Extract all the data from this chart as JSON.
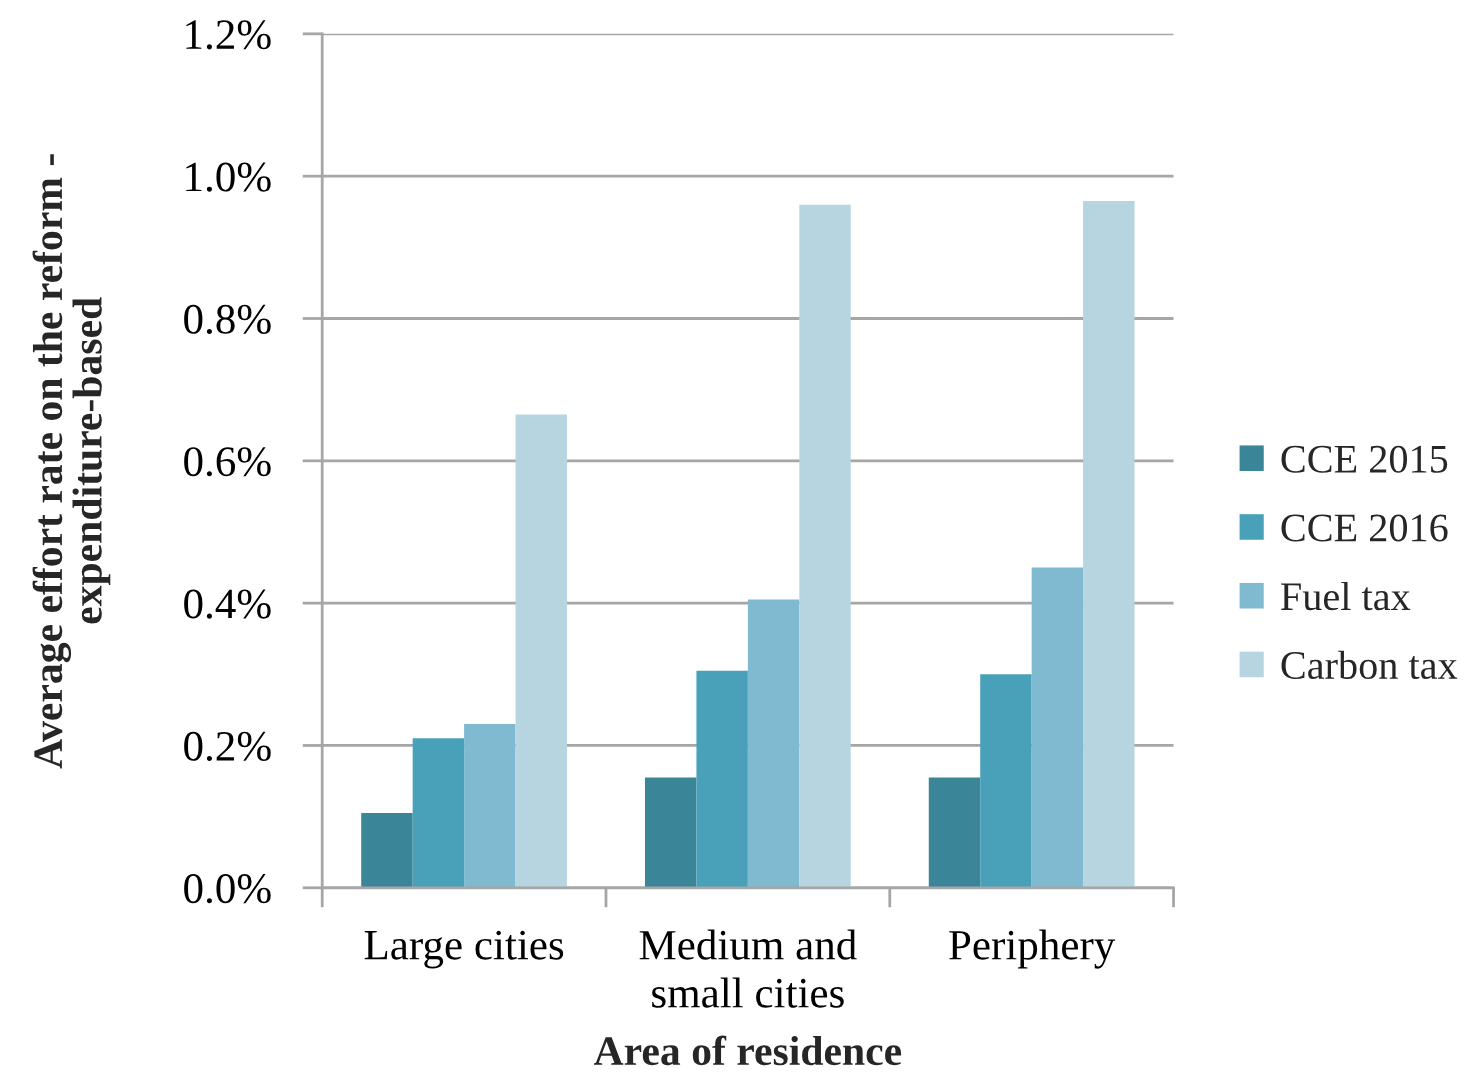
{
  "chart_data": {
    "type": "bar",
    "categories": [
      "Large cities",
      "Medium and small cities",
      "Periphery"
    ],
    "series": [
      {
        "name": "CCE 2015",
        "color": "#3b8599",
        "values": [
          0.105,
          0.155,
          0.155
        ]
      },
      {
        "name": "CCE 2016",
        "color": "#49a1b9",
        "values": [
          0.21,
          0.305,
          0.3
        ]
      },
      {
        "name": "Fuel tax",
        "color": "#7fbad0",
        "values": [
          0.23,
          0.405,
          0.45
        ]
      },
      {
        "name": "Carbon tax",
        "color": "#b6d5e0",
        "values": [
          0.665,
          0.96,
          0.965
        ]
      }
    ],
    "xlabel": "Area of residence",
    "ylabel": "Average effort rate on the reform - expenditure-based",
    "ylim": [
      0,
      1.2
    ],
    "yticks": [
      {
        "value": 0,
        "label": "0.0%"
      },
      {
        "value": 0.2,
        "label": "0.2%"
      },
      {
        "value": 0.4,
        "label": "0.4%"
      },
      {
        "value": 0.6,
        "label": "0.6%"
      },
      {
        "value": 0.8,
        "label": "0.8%"
      },
      {
        "value": 1.0,
        "label": "1.0%"
      },
      {
        "value": 1.2,
        "label": "1.2%"
      }
    ],
    "grid": "y",
    "legend": "right"
  }
}
